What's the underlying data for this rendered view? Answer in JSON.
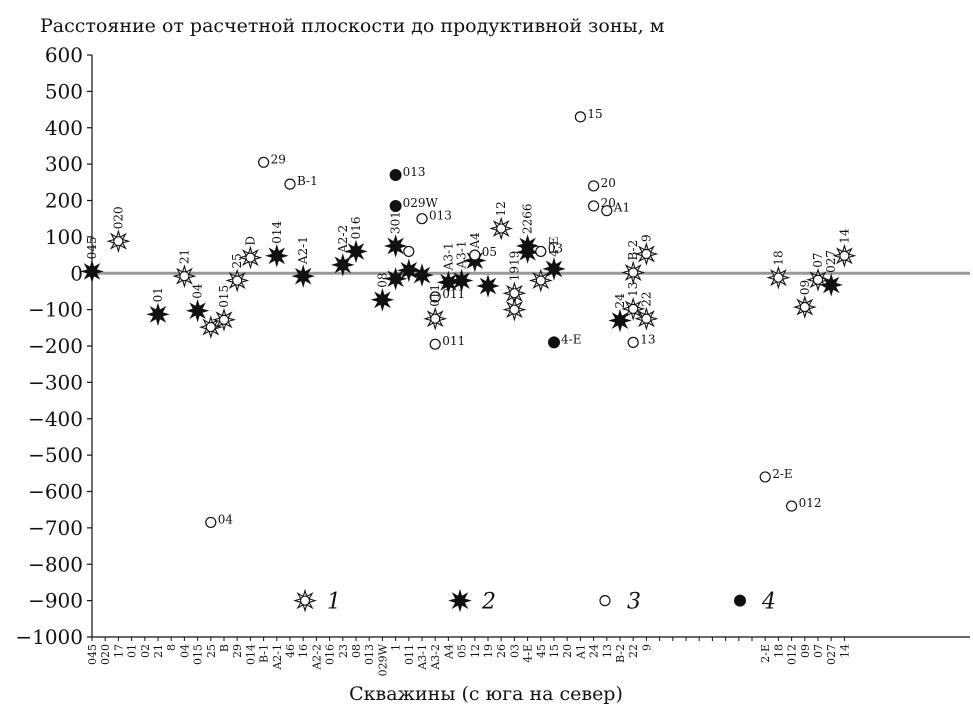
{
  "chart_data": {
    "type": "scatter",
    "title": "Расстояние от расчетной плоскости до продуктивной зоны, м",
    "xlabel": "Скважины (с юга на север)",
    "ylim": [
      -1000,
      600
    ],
    "yticks": [
      "600",
      "500",
      "400",
      "300",
      "200",
      "100",
      "0",
      "−100",
      "−200",
      "−300",
      "−400",
      "−500",
      "−600",
      "−700",
      "−800",
      "−900",
      "−1000"
    ],
    "zero_line": true,
    "categories": [
      "045",
      "020",
      "17",
      "01",
      "02",
      "21",
      "8",
      "04",
      "015",
      "25",
      "B",
      "29",
      "014",
      "B-1",
      "A2-1",
      "46",
      "16",
      "A2-2",
      "016",
      "23",
      "08",
      "013",
      "029W",
      "1",
      "011",
      "A3-1",
      "A3-2",
      "A4",
      "05",
      "12",
      "19",
      "26",
      "03",
      "4-E",
      "45",
      "15",
      "20",
      "A1",
      "24",
      "13",
      "B-2",
      "22",
      "9",
      "",
      "",
      "",
      "",
      "",
      "",
      "",
      "",
      "2-E",
      "18",
      "012",
      "09",
      "07",
      "027",
      "14"
    ],
    "legend": [
      {
        "symbol": "open-star",
        "label": "1"
      },
      {
        "symbol": "filled-star",
        "label": "2"
      },
      {
        "symbol": "open-circle",
        "label": "3"
      },
      {
        "symbol": "filled-circle",
        "label": "4"
      }
    ],
    "points": [
      {
        "x": "045",
        "y": 5,
        "symbol": "filled-star",
        "label": "045"
      },
      {
        "x": "17",
        "y": 88,
        "symbol": "open-star",
        "label": "020"
      },
      {
        "x": "21",
        "y": -113,
        "symbol": "filled-star",
        "label": "01"
      },
      {
        "x": "04",
        "y": -8,
        "symbol": "open-star",
        "label": "21"
      },
      {
        "x": "015",
        "y": -103,
        "symbol": "filled-star",
        "label": "04"
      },
      {
        "x": "25",
        "y": -148,
        "symbol": "open-star",
        "label": ""
      },
      {
        "x": "B",
        "y": -128,
        "symbol": "open-star",
        "label": "015"
      },
      {
        "x": "25",
        "y": -685,
        "symbol": "open-circle",
        "label": "04"
      },
      {
        "x": "29",
        "y": -20,
        "symbol": "open-star",
        "label": "25"
      },
      {
        "x": "014",
        "y": 43,
        "symbol": "open-star",
        "label": "D"
      },
      {
        "x": "B-1",
        "y": 305,
        "symbol": "open-circle",
        "label": "29"
      },
      {
        "x": "A2-1",
        "y": 48,
        "symbol": "filled-star",
        "label": "014"
      },
      {
        "x": "46",
        "y": 245,
        "symbol": "open-circle",
        "label": "B-1"
      },
      {
        "x": "16",
        "y": -8,
        "symbol": "filled-star",
        "label": "A2-1"
      },
      {
        "x": "23",
        "y": 23,
        "symbol": "filled-star",
        "label": "A2-2"
      },
      {
        "x": "08",
        "y": 60,
        "symbol": "filled-star",
        "label": "016"
      },
      {
        "x": "029W",
        "y": -73,
        "symbol": "filled-star",
        "label": "08"
      },
      {
        "x": "1",
        "y": 75,
        "symbol": "filled-star",
        "label": "3018"
      },
      {
        "x": "1",
        "y": -15,
        "symbol": "filled-star",
        "label": ""
      },
      {
        "x": "1",
        "y": 270,
        "symbol": "filled-circle",
        "label": "013"
      },
      {
        "x": "1",
        "y": 185,
        "symbol": "filled-circle",
        "label": "029W"
      },
      {
        "x": "011",
        "y": 60,
        "symbol": "open-circle",
        "label": ""
      },
      {
        "x": "011",
        "y": 8,
        "symbol": "filled-star",
        "label": ""
      },
      {
        "x": "A3-1",
        "y": -5,
        "symbol": "filled-star",
        "label": ""
      },
      {
        "x": "A3-1",
        "y": 150,
        "symbol": "open-circle",
        "label": "013"
      },
      {
        "x": "A3-2",
        "y": -65,
        "symbol": "open-circle",
        "label": "011"
      },
      {
        "x": "A3-2",
        "y": -125,
        "symbol": "open-star",
        "label": "011"
      },
      {
        "x": "A3-2",
        "y": -195,
        "symbol": "open-circle",
        "label": "011"
      },
      {
        "x": "A4",
        "y": -25,
        "symbol": "filled-star",
        "label": "A3-1"
      },
      {
        "x": "05",
        "y": -20,
        "symbol": "filled-star",
        "label": "A3-1"
      },
      {
        "x": "12",
        "y": 35,
        "symbol": "filled-star",
        "label": "A4"
      },
      {
        "x": "12",
        "y": 50,
        "symbol": "open-circle",
        "label": "05"
      },
      {
        "x": "19",
        "y": -35,
        "symbol": "filled-star",
        "label": ""
      },
      {
        "x": "26",
        "y": 123,
        "symbol": "open-star",
        "label": "12"
      },
      {
        "x": "03",
        "y": -55,
        "symbol": "open-star",
        "label": "1919"
      },
      {
        "x": "03",
        "y": -100,
        "symbol": "open-star",
        "label": ""
      },
      {
        "x": "4-E",
        "y": 75,
        "symbol": "filled-star",
        "label": "2266"
      },
      {
        "x": "4-E",
        "y": 58,
        "symbol": "filled-star",
        "label": ""
      },
      {
        "x": "45",
        "y": 60,
        "symbol": "open-circle",
        "label": "03"
      },
      {
        "x": "45",
        "y": -20,
        "symbol": "open-star",
        "label": ""
      },
      {
        "x": "15",
        "y": 12,
        "symbol": "filled-star",
        "label": "4-E"
      },
      {
        "x": "15",
        "y": -190,
        "symbol": "filled-circle",
        "label": "4-E"
      },
      {
        "x": "A1",
        "y": 430,
        "symbol": "open-circle",
        "label": "15"
      },
      {
        "x": "24",
        "y": 240,
        "symbol": "open-circle",
        "label": "20"
      },
      {
        "x": "24",
        "y": 185,
        "symbol": "open-circle",
        "label": "20"
      },
      {
        "x": "13",
        "y": 172,
        "symbol": "open-circle",
        "label": "A1"
      },
      {
        "x": "B-2",
        "y": -130,
        "symbol": "filled-star",
        "label": "24"
      },
      {
        "x": "22",
        "y": -98,
        "symbol": "open-star",
        "label": "13"
      },
      {
        "x": "22",
        "y": -190,
        "symbol": "open-circle",
        "label": "13"
      },
      {
        "x": "22",
        "y": 2,
        "symbol": "open-star",
        "label": "B-2"
      },
      {
        "x": "9",
        "y": -125,
        "symbol": "open-star",
        "label": "22"
      },
      {
        "x": "9",
        "y": 53,
        "symbol": "open-star",
        "label": "9"
      },
      {
        "x": "2-E",
        "y": -560,
        "symbol": "open-circle",
        "label": "2-E"
      },
      {
        "x": "18",
        "y": -12,
        "symbol": "open-star",
        "label": "18"
      },
      {
        "x": "012",
        "y": -640,
        "symbol": "open-circle",
        "label": "012"
      },
      {
        "x": "09",
        "y": -93,
        "symbol": "open-star",
        "label": "09"
      },
      {
        "x": "07",
        "y": -18,
        "symbol": "open-star",
        "label": "07"
      },
      {
        "x": "027",
        "y": -32,
        "symbol": "filled-star",
        "label": "027"
      },
      {
        "x": "14",
        "y": 48,
        "symbol": "open-star",
        "label": "14"
      }
    ]
  }
}
